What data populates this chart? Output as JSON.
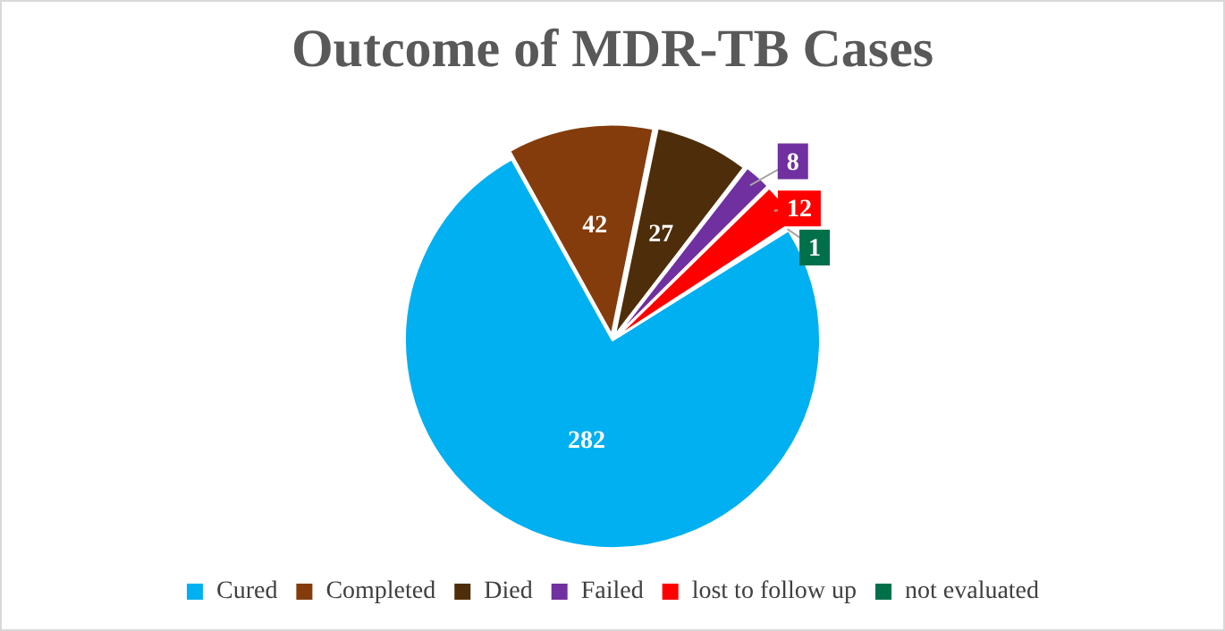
{
  "chart_data": {
    "type": "pie",
    "title": "Outcome of MDR-TB Cases",
    "categories": [
      "Cured",
      "Completed",
      "Died",
      "Failed",
      "lost to follow up",
      "not evaluated"
    ],
    "values": [
      282,
      42,
      27,
      8,
      12,
      1
    ],
    "colors": [
      "#00b0f0",
      "#843c0c",
      "#4e2e0a",
      "#7030a0",
      "#ff0000",
      "#00704a"
    ],
    "data_labels": true,
    "legend": "bottom"
  }
}
